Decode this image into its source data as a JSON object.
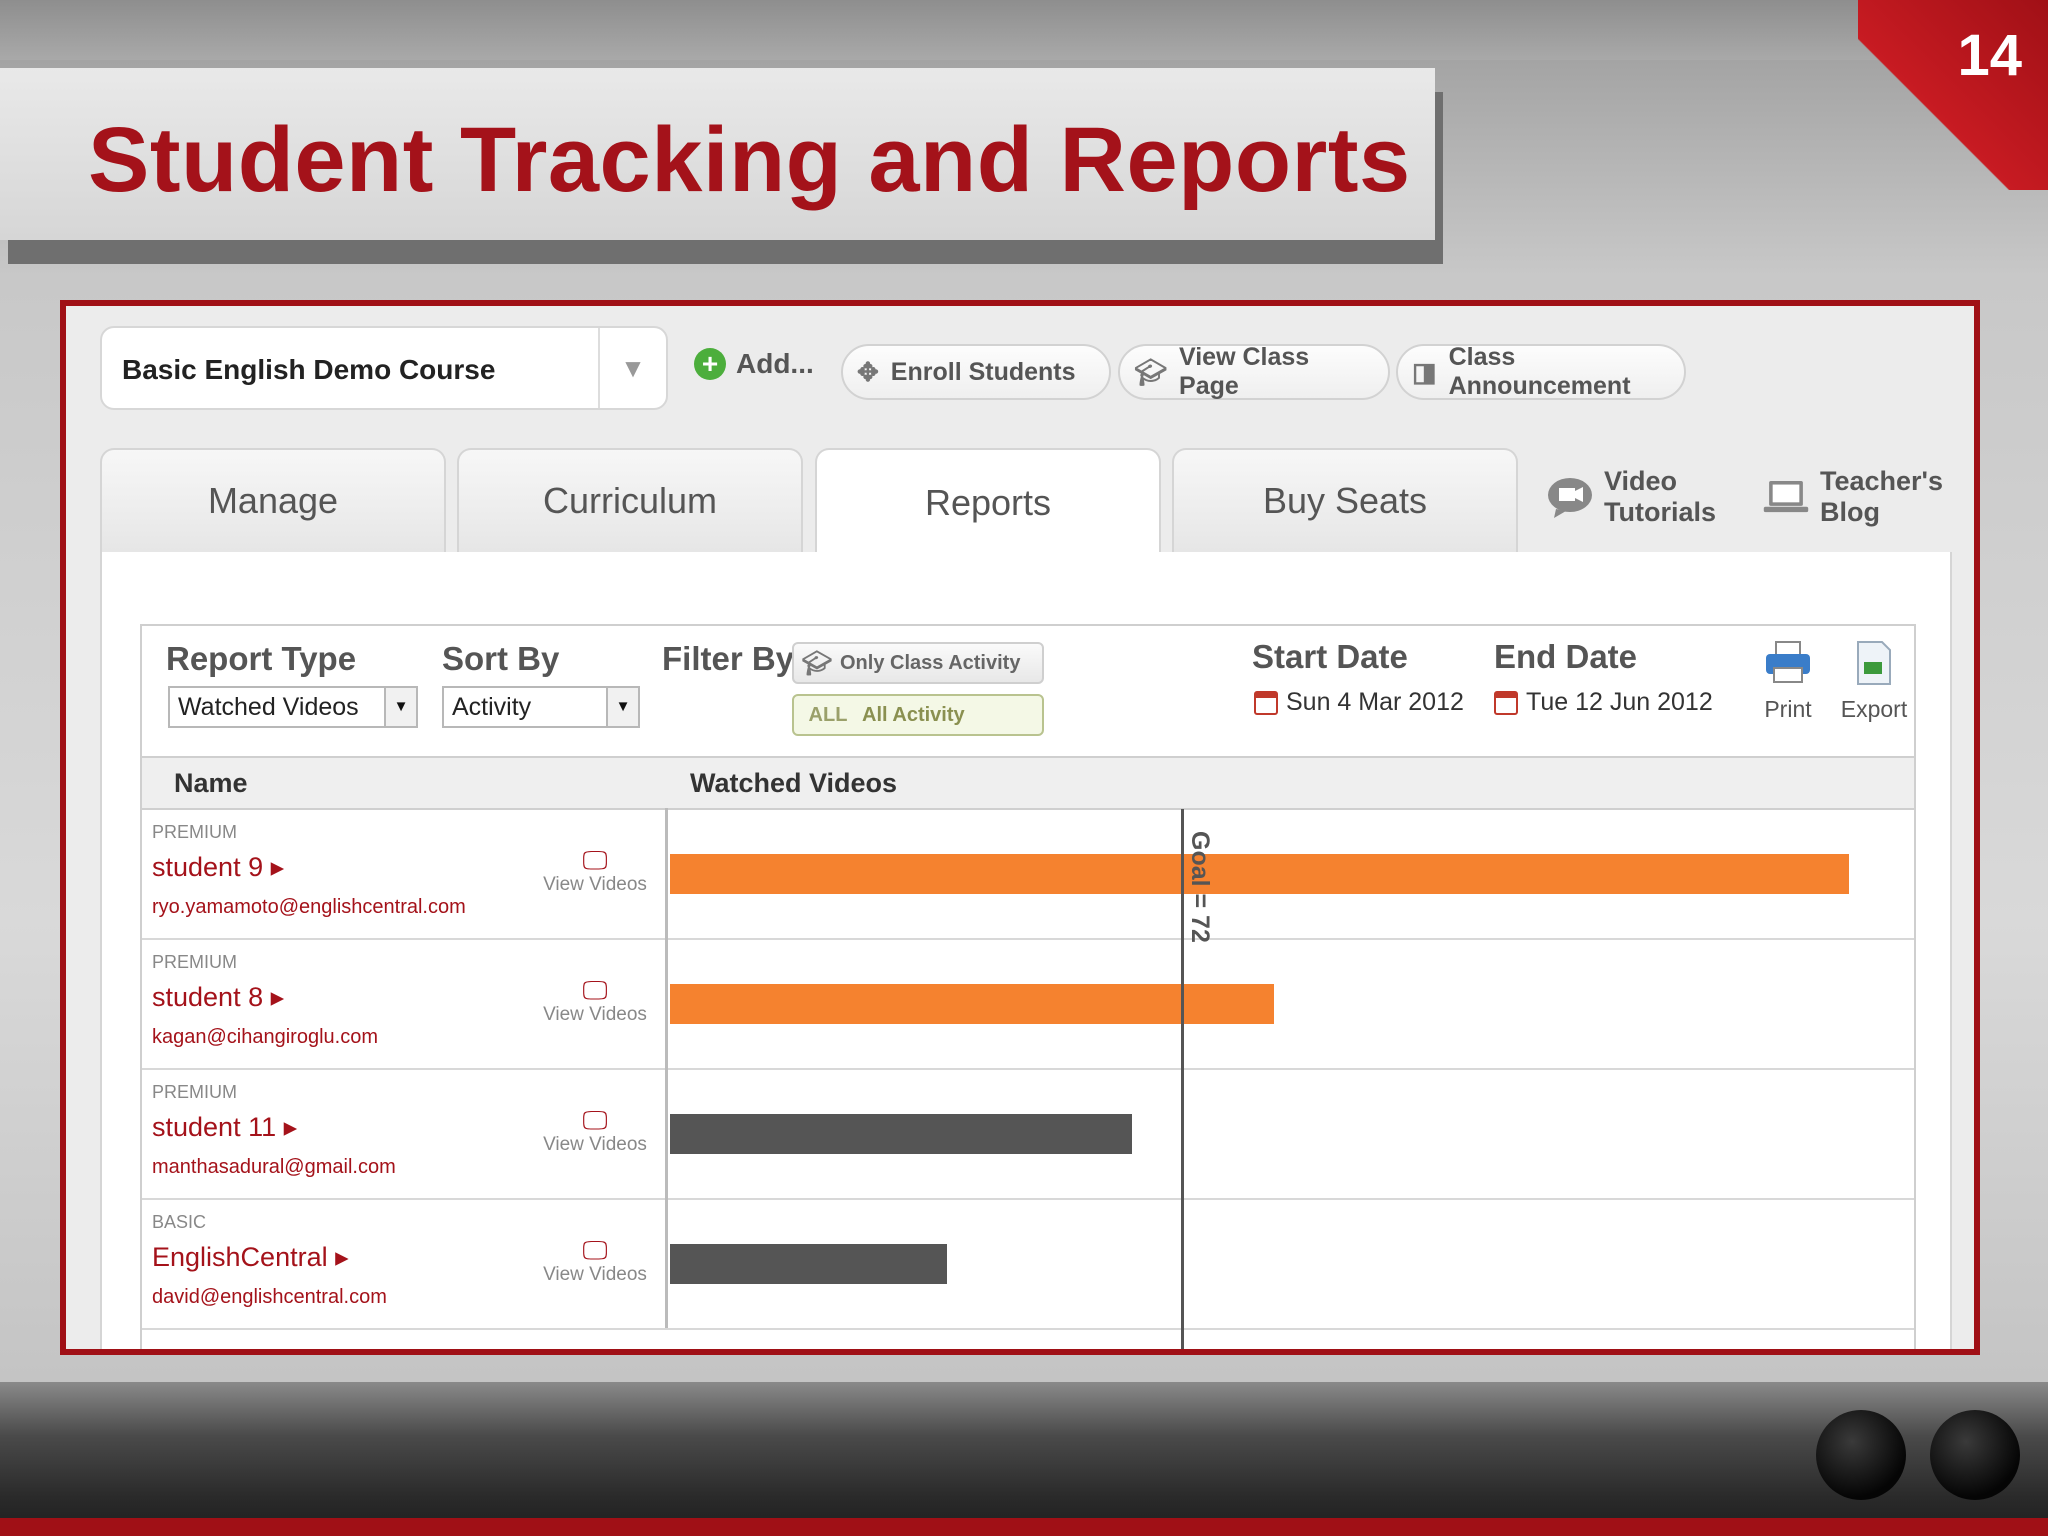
{
  "slide": {
    "title": "Student Tracking and Reports",
    "page_number": "14"
  },
  "toolbar": {
    "course": "Basic English Demo Course",
    "add": "Add...",
    "enroll": "Enroll Students",
    "view_class": "View Class Page",
    "announcement": "Class Announcement"
  },
  "tabs": {
    "manage": "Manage",
    "curriculum": "Curriculum",
    "reports": "Reports",
    "buy_seats": "Buy Seats",
    "active": "Reports"
  },
  "side_links": {
    "video_tutorials_l1": "Video",
    "video_tutorials_l2": "Tutorials",
    "blog_l1": "Teacher's",
    "blog_l2": "Blog"
  },
  "report": {
    "report_type_label": "Report Type",
    "report_type_value": "Watched Videos",
    "sort_by_label": "Sort By",
    "sort_by_value": "Activity",
    "filter_by_label": "Filter By",
    "filter_only_class": "Only Class Activity",
    "filter_all_tag": "ALL",
    "filter_all": "All Activity",
    "start_date_label": "Start Date",
    "start_date": "Sun 4 Mar 2012",
    "end_date_label": "End Date",
    "end_date": "Tue 12 Jun 2012",
    "print": "Print",
    "export": "Export"
  },
  "table": {
    "col_name": "Name",
    "col_chart": "Watched Videos",
    "view_videos": "View Videos",
    "goal_label": "Goal = 72",
    "goal_value": 72,
    "rows": [
      {
        "tier": "PREMIUM",
        "name": "student 9 ▸",
        "email": "ryo.yamamoto@englishcentral.com",
        "value": 166,
        "color": "#f5822f"
      },
      {
        "tier": "PREMIUM",
        "name": "student 8 ▸",
        "email": "kagan@cihangiroglu.com",
        "value": 85,
        "color": "#f5822f"
      },
      {
        "tier": "PREMIUM",
        "name": "student 11 ▸",
        "email": "manthasadural@gmail.com",
        "value": 65,
        "color": "#555555"
      },
      {
        "tier": "BASIC",
        "name": "EnglishCentral ▸",
        "email": "david@englishcentral.com",
        "value": 39,
        "color": "#555555"
      }
    ]
  },
  "colors": {
    "brand_red": "#a4121a",
    "bar_above_goal": "#f5822f",
    "bar_below_goal": "#555555"
  }
}
